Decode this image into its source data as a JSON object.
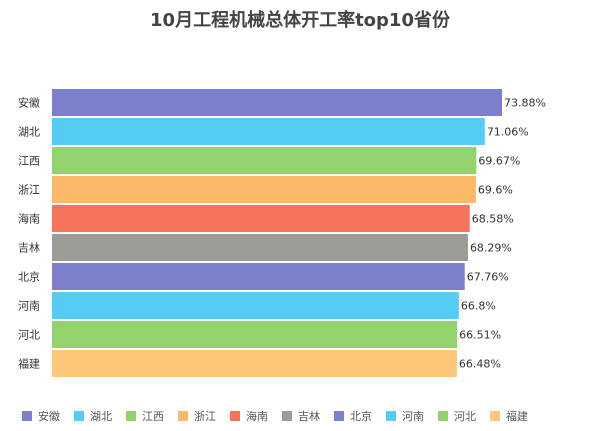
{
  "chart_data": {
    "type": "bar",
    "orientation": "horizontal",
    "title": "10月工程机械总体开工率top10省份",
    "categories": [
      "安徽",
      "湖北",
      "江西",
      "浙江",
      "海南",
      "吉林",
      "北京",
      "河南",
      "河北",
      "福建"
    ],
    "values": [
      73.88,
      71.06,
      69.67,
      69.6,
      68.58,
      68.29,
      67.76,
      66.8,
      66.51,
      66.48
    ],
    "value_labels": [
      "73.88%",
      "71.06%",
      "69.67%",
      "69.6%",
      "68.58%",
      "68.29%",
      "67.76%",
      "66.8%",
      "66.51%",
      "66.48%"
    ],
    "colors": [
      "#7b7fcc",
      "#55ccf5",
      "#92d36e",
      "#fdb96a",
      "#f5735a",
      "#9e9a96",
      "#7b7fcc",
      "#55ccf5",
      "#92d36e",
      "#fdc77a"
    ],
    "xlim": [
      0,
      75
    ],
    "grid": false,
    "legend_position": "bottom"
  }
}
